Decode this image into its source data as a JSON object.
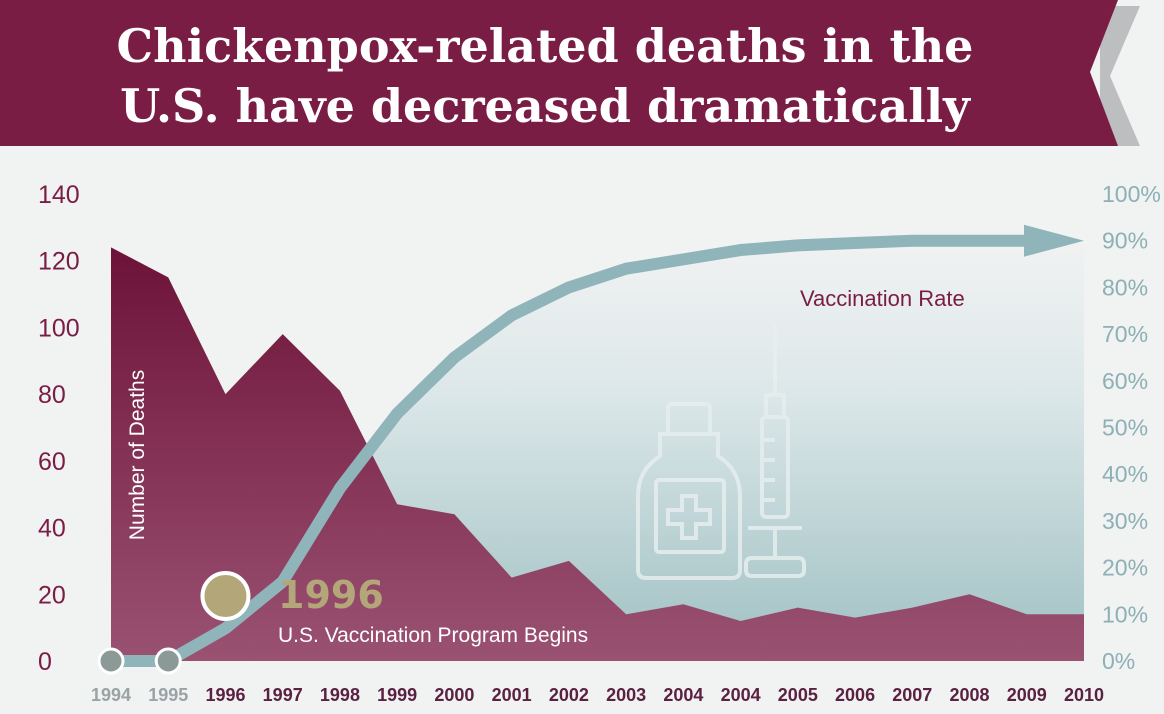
{
  "chart_data": {
    "type": "area",
    "title_lines": [
      "Chickenpox-related deaths in the",
      "U.S. have  decreased dramatically"
    ],
    "categories": [
      "1994",
      "1995",
      "1996",
      "1997",
      "1998",
      "1999",
      "2000",
      "2001",
      "2002",
      "2003",
      "2004",
      "2004",
      "2005",
      "2006",
      "2007",
      "2008",
      "2009",
      "2010"
    ],
    "ylabel": "Number of Deaths",
    "ylim": [
      0,
      140
    ],
    "yticks": [
      "0",
      "20",
      "40",
      "60",
      "80",
      "100",
      "120",
      "140"
    ],
    "y2lim": [
      0,
      100
    ],
    "y2ticks": [
      "0%",
      "10%",
      "20%",
      "30%",
      "40%",
      "50%",
      "60%",
      "70%",
      "80%",
      "90%",
      "100%"
    ],
    "series": [
      {
        "type": "area",
        "axis": "left",
        "values": [
          124,
          115,
          80,
          98,
          81,
          47,
          44,
          25,
          30,
          14,
          17,
          12,
          16,
          13,
          16,
          20,
          14,
          14
        ]
      },
      {
        "name": "Vaccination Rate",
        "type": "line",
        "axis": "right",
        "values": [
          0,
          0,
          7,
          17,
          37,
          53,
          65,
          74,
          80,
          84,
          86,
          88,
          89,
          89.5,
          90,
          90,
          90,
          90
        ]
      }
    ],
    "annotation": {
      "year": "1996",
      "text": "U.S. Vaccination Program Begins"
    },
    "pre_program_categories": [
      "1994",
      "1995"
    ],
    "colors": {
      "deaths": "#7a1d45",
      "vaccination": "#8fb5ba",
      "banner": "#7a1d45",
      "marker": "#b3a77a",
      "marker_pre": "#8b9a96"
    }
  }
}
